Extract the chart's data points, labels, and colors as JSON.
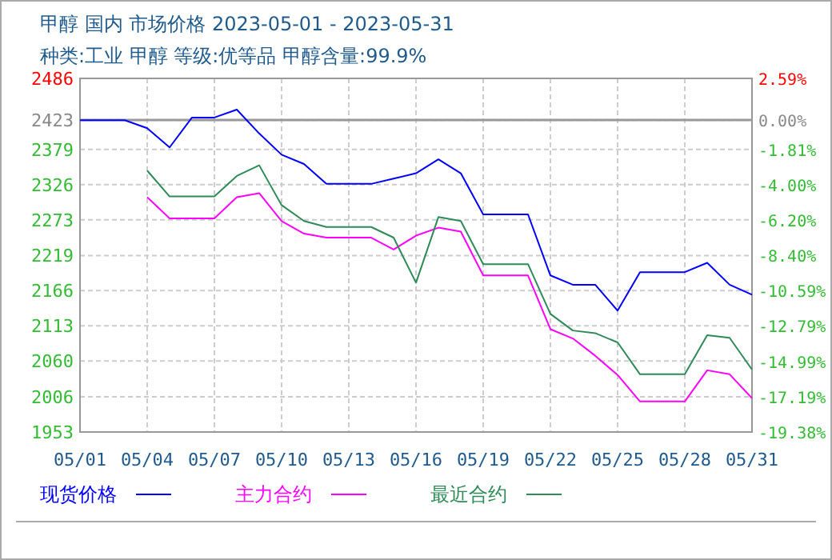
{
  "chart_data": {
    "type": "line",
    "title": "甲醇 国内 市场价格 2023-05-01 - 2023-05-31",
    "subtitle": "种类:工业 甲醇 等级:优等品 甲醇含量:99.9%",
    "x": [
      "--05-01",
      "--05-02",
      "--05-03",
      "--05-04",
      "--05-05",
      "--05-06",
      "--05-07",
      "--05-08",
      "--05-09",
      "--05-10",
      "--05-11",
      "--05-12",
      "--05-13",
      "--05-14",
      "--05-15",
      "--05-16",
      "--05-17",
      "--05-18",
      "--05-19",
      "--05-20",
      "--05-21",
      "--05-22",
      "--05-23",
      "--05-24",
      "--05-25",
      "--05-26",
      "--05-27",
      "--05-28",
      "--05-29",
      "--05-30",
      "--05-31"
    ],
    "series": [
      {
        "name": "现货价格",
        "color": "#0000ff",
        "values": [
          2423,
          2423,
          2423,
          2411,
          2382,
          2427,
          2427,
          2439,
          2403,
          2371,
          2357,
          2327,
          2327,
          2327,
          2335,
          2343,
          2364,
          2343,
          2281,
          2281,
          2281,
          2189,
          2175,
          2175,
          2136,
          2194,
          2194,
          2194,
          2208,
          2175,
          2160
        ]
      },
      {
        "name": "主力合约",
        "color": "#ff00ff",
        "values": [
          null,
          null,
          null,
          2307,
          2275,
          2275,
          2275,
          2307,
          2313,
          2271,
          2252,
          2246,
          2246,
          2246,
          2228,
          2249,
          2261,
          2255,
          2189,
          2189,
          2189,
          2108,
          2094,
          2068,
          2039,
          1999,
          1999,
          1999,
          2046,
          2040,
          2004
        ]
      },
      {
        "name": "最近合约",
        "color": "#2e8b57",
        "values": [
          null,
          null,
          null,
          2347,
          2308,
          2308,
          2308,
          2339,
          2355,
          2295,
          2271,
          2262,
          2262,
          2262,
          2246,
          2178,
          2277,
          2271,
          2206,
          2206,
          2206,
          2131,
          2106,
          2102,
          2088,
          2040,
          2040,
          2040,
          2099,
          2095,
          2047
        ]
      }
    ],
    "xlim": [
      "--05-01",
      "--05-31"
    ],
    "xticks": [
      {
        "value": "--05-01",
        "label": "05/01"
      },
      {
        "value": "--05-04",
        "label": "05/04"
      },
      {
        "value": "--05-07",
        "label": "05/07"
      },
      {
        "value": "--05-10",
        "label": "05/10"
      },
      {
        "value": "--05-13",
        "label": "05/13"
      },
      {
        "value": "--05-16",
        "label": "05/16"
      },
      {
        "value": "--05-19",
        "label": "05/19"
      },
      {
        "value": "--05-22",
        "label": "05/22"
      },
      {
        "value": "--05-25",
        "label": "05/25"
      },
      {
        "value": "--05-28",
        "label": "05/28"
      },
      {
        "value": "--05-31",
        "label": "05/31"
      }
    ],
    "ylim": [
      1953,
      2486
    ],
    "yticks": [
      2486,
      2423,
      2379,
      2326,
      2273,
      2219,
      2166,
      2113,
      2060,
      2006,
      1953
    ],
    "y2lim": [
      -19.38,
      2.59
    ],
    "y2ticks": [
      {
        "value": 2.59,
        "label": "2.59%"
      },
      {
        "value": 0,
        "label": "0.00%"
      },
      {
        "value": -1.81,
        "label": "-1.81%"
      },
      {
        "value": -4,
        "label": "-4.00%"
      },
      {
        "value": -6.2,
        "label": "-6.20%"
      },
      {
        "value": -8.4,
        "label": "-8.40%"
      },
      {
        "value": -10.59,
        "label": "-10.59%"
      },
      {
        "value": -12.79,
        "label": "-12.79%"
      },
      {
        "value": -14.99,
        "label": "-14.99%"
      },
      {
        "value": -17.19,
        "label": "-17.19%"
      },
      {
        "value": -19.38,
        "label": "-19.38%"
      }
    ],
    "ref_lines": [
      {
        "axis": "y2",
        "value": 0,
        "color": "#999999"
      }
    ],
    "grid": true,
    "legend": "bottom",
    "marker": "none",
    "line_style": "solid"
  }
}
